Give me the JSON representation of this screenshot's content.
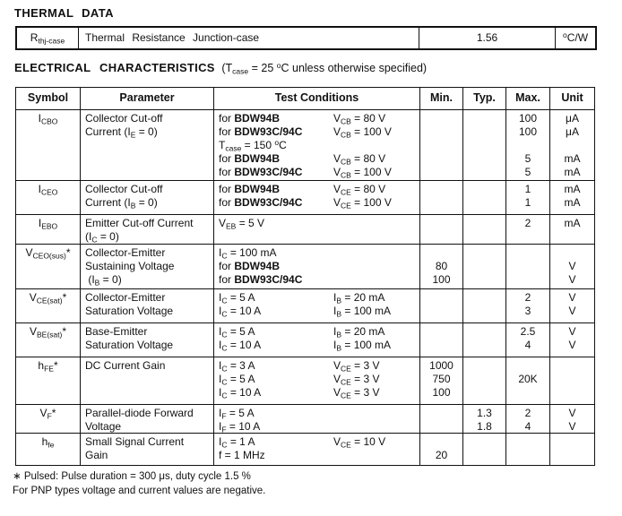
{
  "thermal": {
    "title": "THERMAL DATA",
    "table": {
      "symbol": "R_{thj-case}",
      "parameter": "Thermal Resistance Junction-case",
      "value": "1.56",
      "unit": "^{o}C/W"
    }
  },
  "electrical": {
    "title": "ELECTRICAL CHARACTERISTICS",
    "subtitle": "(T_{case} = 25 ^{o}C unless otherwise specified)",
    "table": {
      "headers": [
        "Symbol",
        "Parameter",
        "Test Conditions",
        "Min.",
        "Typ.",
        "Max.",
        "Unit"
      ],
      "rows": [
        {
          "symbol": "I_{CBO}",
          "parameter_lines": [
            "Collector Cut-off",
            "Current (I_{E} = 0)"
          ],
          "lines": [
            {
              "c1": "for **BDW94B**",
              "c2": "V_{CB} = 80 V",
              "max": "100",
              "unit": "μA"
            },
            {
              "c1": "for **BDW93C/94C**",
              "c2": "V_{CB} = 100 V",
              "max": "100",
              "unit": "μA"
            },
            {
              "c1": "T_{case} = 150 ^{o}C"
            },
            {
              "c1": "for **BDW94B**",
              "c2": "V_{CB} = 80 V",
              "max": "5",
              "unit": "mA"
            },
            {
              "c1": "for **BDW93C/94C**",
              "c2": "V_{CB} = 100 V",
              "max": "5",
              "unit": "mA"
            }
          ]
        },
        {
          "symbol": "I_{CEO}",
          "parameter_lines": [
            "Collector Cut-off",
            "Current (I_{B} = 0)"
          ],
          "lines": [
            {
              "c1": "for **BDW94B**",
              "c2": "V_{CE} = 80 V",
              "max": "1",
              "unit": "mA"
            },
            {
              "c1": "for **BDW93C/94C**",
              "c2": "V_{CE} = 100 V",
              "max": "1",
              "unit": "mA"
            }
          ]
        },
        {
          "symbol": "I_{EBO}",
          "parameter_lines": [
            "Emitter Cut-off Current",
            "(I_{C} = 0)"
          ],
          "lines": [
            {
              "c1": "V_{EB} = 5 V",
              "max": "2",
              "unit": "mA"
            }
          ]
        },
        {
          "symbol": "V_{CEO(sus)}*",
          "parameter_lines": [
            "Collector-Emitter",
            "Sustaining Voltage",
            " (I_{B} = 0)"
          ],
          "lines": [
            {
              "c1": "I_{C} = 100 mA"
            },
            {
              "c1": "for **BDW94B**",
              "min": "80",
              "unit": "V"
            },
            {
              "c1": "for **BDW93C/94C**",
              "min": "100",
              "unit": "V"
            }
          ]
        },
        {
          "symbol": "V_{CE(sat)}*",
          "parameter_lines": [
            "Collector-Emitter",
            "Saturation Voltage"
          ],
          "lines": [
            {
              "c1": "I_{C} = 5 A",
              "c2": "I_{B} = 20 mA",
              "max": "2",
              "unit": "V"
            },
            {
              "c1": "I_{C} = 10 A",
              "c2": "I_{B} = 100 mA",
              "max": "3",
              "unit": "V"
            }
          ]
        },
        {
          "symbol": "V_{BE(sat)}*",
          "parameter_lines": [
            "Base-Emitter",
            "Saturation Voltage"
          ],
          "lines": [
            {
              "c1": "I_{C} = 5 A",
              "c2": "I_{B} = 20 mA",
              "max": "2.5",
              "unit": "V"
            },
            {
              "c1": "I_{C} = 10 A",
              "c2": "I_{B} = 100 mA",
              "max": "4",
              "unit": "V"
            }
          ]
        },
        {
          "symbol": "h_{FE}*",
          "parameter_lines": [
            "DC Current Gain"
          ],
          "lines": [
            {
              "c1": "I_{C} = 3 A",
              "c2": "V_{CE} = 3 V",
              "min": "1000"
            },
            {
              "c1": "I_{C} = 5 A",
              "c2": "V_{CE} = 3 V",
              "min": "750",
              "max": "20K"
            },
            {
              "c1": "I_{C} = 10 A",
              "c2": "V_{CE} = 3 V",
              "min": "100"
            }
          ]
        },
        {
          "symbol": "V_{F}*",
          "parameter_lines": [
            "Parallel-diode Forward",
            "Voltage"
          ],
          "lines": [
            {
              "c1": "I_{F} = 5 A",
              "typ": "1.3",
              "max": "2",
              "unit": "V"
            },
            {
              "c1": "I_{F} = 10 A",
              "typ": "1.8",
              "max": "4",
              "unit": "V"
            }
          ]
        },
        {
          "symbol": "h_{fe}",
          "parameter_lines": [
            "Small Signal Current",
            "Gain"
          ],
          "lines": [
            {
              "c1": "I_{C} = 1 A",
              "c2": "V_{CE} = 10 V"
            },
            {
              "c1": "f = 1 MHz",
              "min": "20"
            }
          ]
        }
      ]
    }
  },
  "footnotes": [
    "∗ Pulsed: Pulse duration = 300 μs, duty cycle 1.5 %",
    "For PNP types voltage and current values are negative."
  ]
}
